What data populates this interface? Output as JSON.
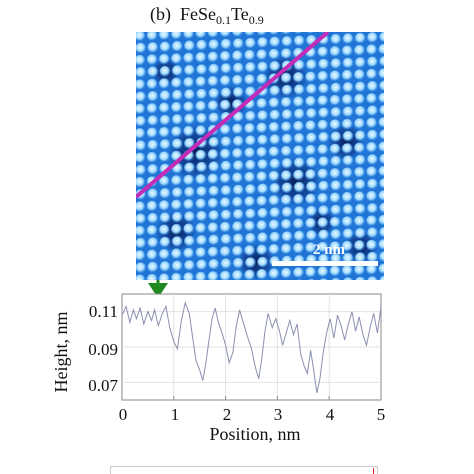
{
  "figure": {
    "panel_label": "(b)",
    "title_base": "FeSe",
    "title_sub1": "0.1",
    "title_mid": "Te",
    "title_sub2": "0.9"
  },
  "stm_image": {
    "scale_bar_label": "2 nm",
    "colors": {
      "dark": "#0b2a78",
      "mid": "#1f74d6",
      "light": "#cdefff",
      "line": "#c42bb8",
      "marker": "#1f8a1f"
    }
  },
  "chart_data": {
    "type": "line",
    "title": "",
    "xlabel": "Position, nm",
    "ylabel": "Height, nm",
    "xlim": [
      0,
      5
    ],
    "ylim": [
      0.06,
      0.12
    ],
    "xticks": [
      "0",
      "1",
      "2",
      "3",
      "4",
      "5"
    ],
    "yticks": [
      "0.11",
      "0.09",
      "0.07"
    ],
    "grid": true,
    "series": [
      {
        "color": "#8a8fb0",
        "x": [
          0,
          0.08,
          0.15,
          0.22,
          0.28,
          0.35,
          0.42,
          0.5,
          0.57,
          0.63,
          0.7,
          0.78,
          0.85,
          0.92,
          1.0,
          1.07,
          1.14,
          1.22,
          1.3,
          1.37,
          1.43,
          1.5,
          1.56,
          1.62,
          1.68,
          1.74,
          1.8,
          1.86,
          1.93,
          2.0,
          2.07,
          2.14,
          2.2,
          2.27,
          2.34,
          2.42,
          2.5,
          2.57,
          2.64,
          2.7,
          2.76,
          2.82,
          2.9,
          2.97,
          3.04,
          3.1,
          3.17,
          3.24,
          3.31,
          3.38,
          3.45,
          3.52,
          3.58,
          3.64,
          3.7,
          3.76,
          3.82,
          3.88,
          3.95,
          4.02,
          4.09,
          4.16,
          4.23,
          4.3,
          4.37,
          4.44,
          4.51,
          4.58,
          4.65,
          4.72,
          4.79,
          4.86,
          4.93,
          5.0
        ],
        "y": [
          0.108,
          0.113,
          0.104,
          0.111,
          0.106,
          0.112,
          0.103,
          0.11,
          0.105,
          0.111,
          0.102,
          0.109,
          0.113,
          0.101,
          0.093,
          0.089,
          0.104,
          0.115,
          0.109,
          0.094,
          0.082,
          0.077,
          0.071,
          0.081,
          0.094,
          0.106,
          0.112,
          0.104,
          0.098,
          0.091,
          0.081,
          0.087,
          0.101,
          0.111,
          0.104,
          0.096,
          0.089,
          0.079,
          0.072,
          0.084,
          0.099,
          0.109,
          0.101,
          0.106,
          0.099,
          0.091,
          0.098,
          0.105,
          0.097,
          0.103,
          0.086,
          0.079,
          0.075,
          0.088,
          0.077,
          0.064,
          0.072,
          0.086,
          0.098,
          0.106,
          0.095,
          0.108,
          0.102,
          0.094,
          0.103,
          0.11,
          0.099,
          0.107,
          0.097,
          0.091,
          0.101,
          0.109,
          0.098,
          0.113
        ]
      }
    ]
  }
}
